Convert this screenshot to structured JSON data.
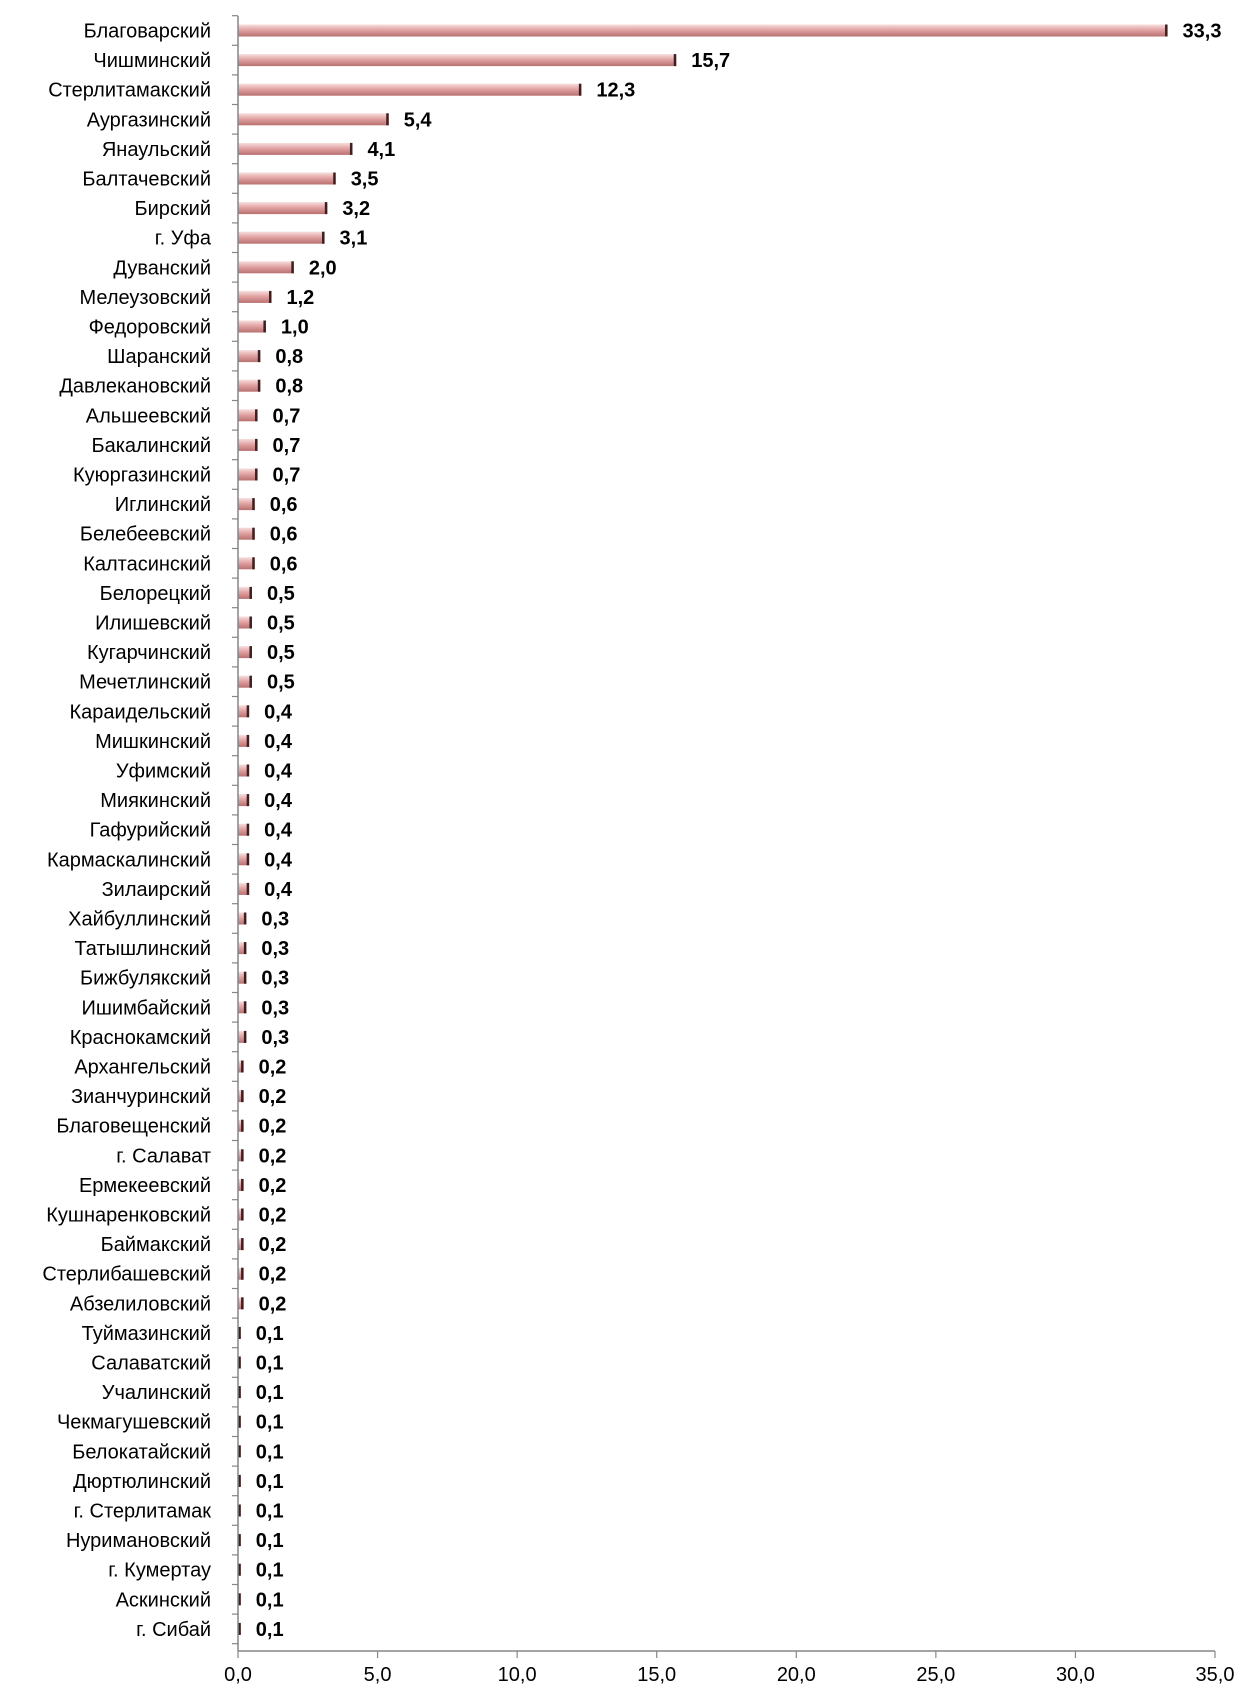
{
  "chart_data": {
    "type": "bar",
    "orientation": "horizontal",
    "categories": [
      "Благоварский",
      "Чишминский",
      "Стерлитамакский",
      "Аургазинский",
      "Янаульский",
      "Балтачевский",
      "Бирский",
      "г. Уфа",
      "Дуванский",
      "Мелеузовский",
      "Федоровский",
      "Шаранский",
      "Давлекановский",
      "Альшеевский",
      "Бакалинский",
      "Куюргазинский",
      "Иглинский",
      "Белебеевский",
      "Калтасинский",
      "Белорецкий",
      "Илишевский",
      "Кугарчинский",
      "Мечетлинский",
      "Караидельский",
      "Мишкинский",
      "Уфимский",
      "Миякинский",
      "Гафурийский",
      "Кармаскалинский",
      "Зилаирский",
      "Хайбуллинский",
      "Татышлинский",
      "Бижбулякский",
      "Ишимбайский",
      "Краснокамский",
      "Архангельский",
      "Зианчуринский",
      "Благовещенский",
      "г. Салават",
      "Ермекеевский",
      "Кушнаренковский",
      "Баймакский",
      "Стерлибашевский",
      "Абзелиловский",
      "Туймазинский",
      "Салаватский",
      "Учалинский",
      "Чекмагушевский",
      "Белокатайский",
      "Дюртюлинский",
      "г. Стерлитамак",
      "Нуримановский",
      "г. Кумертау",
      "Аскинский",
      "г. Сибай"
    ],
    "values": [
      33.3,
      15.7,
      12.3,
      5.4,
      4.1,
      3.5,
      3.2,
      3.1,
      2.0,
      1.2,
      1.0,
      0.8,
      0.8,
      0.7,
      0.7,
      0.7,
      0.6,
      0.6,
      0.6,
      0.5,
      0.5,
      0.5,
      0.5,
      0.4,
      0.4,
      0.4,
      0.4,
      0.4,
      0.4,
      0.4,
      0.3,
      0.3,
      0.3,
      0.3,
      0.3,
      0.2,
      0.2,
      0.2,
      0.2,
      0.2,
      0.2,
      0.2,
      0.2,
      0.2,
      0.1,
      0.1,
      0.1,
      0.1,
      0.1,
      0.1,
      0.1,
      0.1,
      0.1,
      0.1,
      0.1
    ],
    "value_labels": [
      "33,3",
      "15,7",
      "12,3",
      "5,4",
      "4,1",
      "3,5",
      "3,2",
      "3,1",
      "2,0",
      "1,2",
      "1,0",
      "0,8",
      "0,8",
      "0,7",
      "0,7",
      "0,7",
      "0,6",
      "0,6",
      "0,6",
      "0,5",
      "0,5",
      "0,5",
      "0,5",
      "0,4",
      "0,4",
      "0,4",
      "0,4",
      "0,4",
      "0,4",
      "0,4",
      "0,3",
      "0,3",
      "0,3",
      "0,3",
      "0,3",
      "0,2",
      "0,2",
      "0,2",
      "0,2",
      "0,2",
      "0,2",
      "0,2",
      "0,2",
      "0,2",
      "0,1",
      "0,1",
      "0,1",
      "0,1",
      "0,1",
      "0,1",
      "0,1",
      "0,1",
      "0,1",
      "0,1",
      "0,1"
    ],
    "xlim": [
      0,
      35
    ],
    "x_ticks": [
      0,
      5,
      10,
      15,
      20,
      25,
      30,
      35
    ],
    "x_tick_labels": [
      "0,0",
      "5,0",
      "10,0",
      "15,0",
      "20,0",
      "25,0",
      "30,0",
      "35,0"
    ],
    "title": "",
    "xlabel": "",
    "ylabel": "",
    "grid": false,
    "legend": "none",
    "bar_color": "#e8a8a8",
    "axis_color": "#868686"
  }
}
